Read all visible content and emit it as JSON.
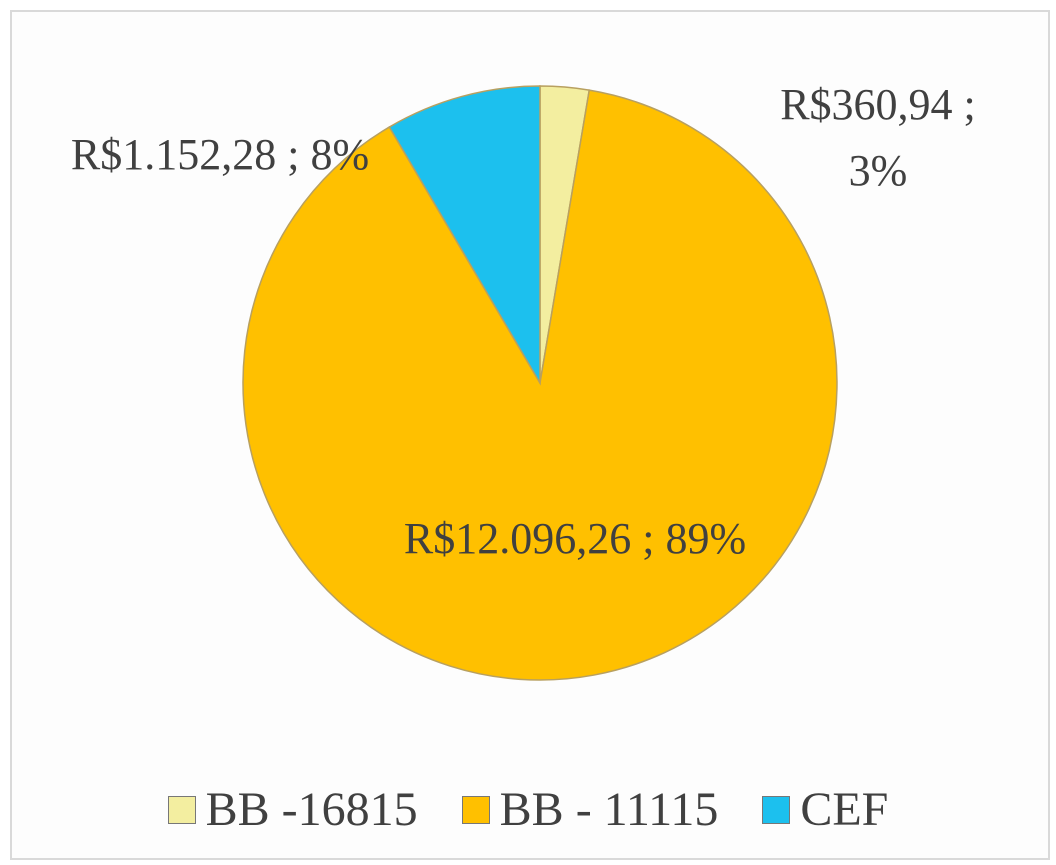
{
  "chart_data": {
    "type": "pie",
    "categories": [
      "BB -16815",
      "BB - 11115",
      "CEF"
    ],
    "values": [
      360.94,
      12096.26,
      1152.28
    ],
    "value_labels": [
      "R$360,94 ; 3%",
      "R$12.096,26 ; 89%",
      "R$1.152,28 ; 8%"
    ],
    "colors": [
      "#f3eea0",
      "#ffc000",
      "#1cc0ee"
    ],
    "legend": "bottom"
  }
}
